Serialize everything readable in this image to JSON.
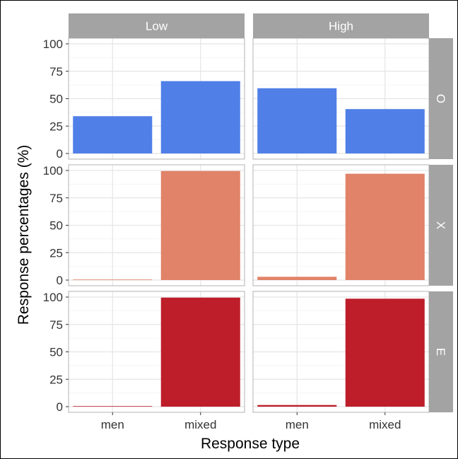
{
  "chart_data": {
    "type": "bar",
    "facet_columns": [
      "Low",
      "High"
    ],
    "facet_rows": [
      "O",
      "X",
      "E"
    ],
    "categories": [
      "men",
      "mixed"
    ],
    "xlabel": "Response type",
    "ylabel": "Response percentages (%)",
    "ylim": [
      0,
      100
    ],
    "yticks": [
      "0",
      "25",
      "50",
      "75",
      "100"
    ],
    "grid": true,
    "legend": "none",
    "panels": [
      {
        "row": "O",
        "col": "Low",
        "values": [
          34,
          66
        ]
      },
      {
        "row": "O",
        "col": "High",
        "values": [
          59.5,
          40.5
        ]
      },
      {
        "row": "X",
        "col": "Low",
        "values": [
          0.5,
          99.5
        ]
      },
      {
        "row": "X",
        "col": "High",
        "values": [
          3,
          97
        ]
      },
      {
        "row": "E",
        "col": "Low",
        "values": [
          0.5,
          99.5
        ]
      },
      {
        "row": "E",
        "col": "High",
        "values": [
          1.5,
          98.5
        ]
      }
    ],
    "row_colors": {
      "O": "#507FE7",
      "X": "#E08368",
      "E": "#BE1E2A"
    },
    "strip_color": "#A3A3A3",
    "strip_text_color": "#FFFFFF",
    "panel_border_color": "#B3B3B3",
    "grid_color": "#E5E5E5"
  }
}
